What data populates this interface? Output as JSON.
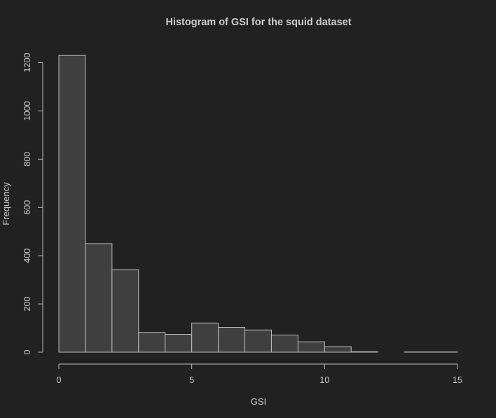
{
  "chart_data": {
    "type": "bar",
    "title": "Histogram of GSI for the squid dataset",
    "xlabel": "GSI",
    "ylabel": "Frequency",
    "bin_edges": [
      0,
      1,
      2,
      3,
      4,
      5,
      6,
      7,
      8,
      9,
      10,
      11,
      12,
      13,
      14,
      15
    ],
    "values": [
      1230,
      450,
      342,
      82,
      74,
      121,
      103,
      92,
      71,
      43,
      23,
      2,
      0,
      1,
      1
    ],
    "xlim": [
      0,
      15
    ],
    "ylim": [
      0,
      1200
    ],
    "x_ticks": [
      0,
      5,
      10,
      15
    ],
    "y_ticks": [
      0,
      200,
      400,
      600,
      800,
      1000,
      1200
    ],
    "grid": false,
    "colors": {
      "background": "#212121",
      "bar_fill": "#3f3f3f",
      "bar_stroke": "#bdbdbd",
      "text": "#cccccc"
    }
  }
}
